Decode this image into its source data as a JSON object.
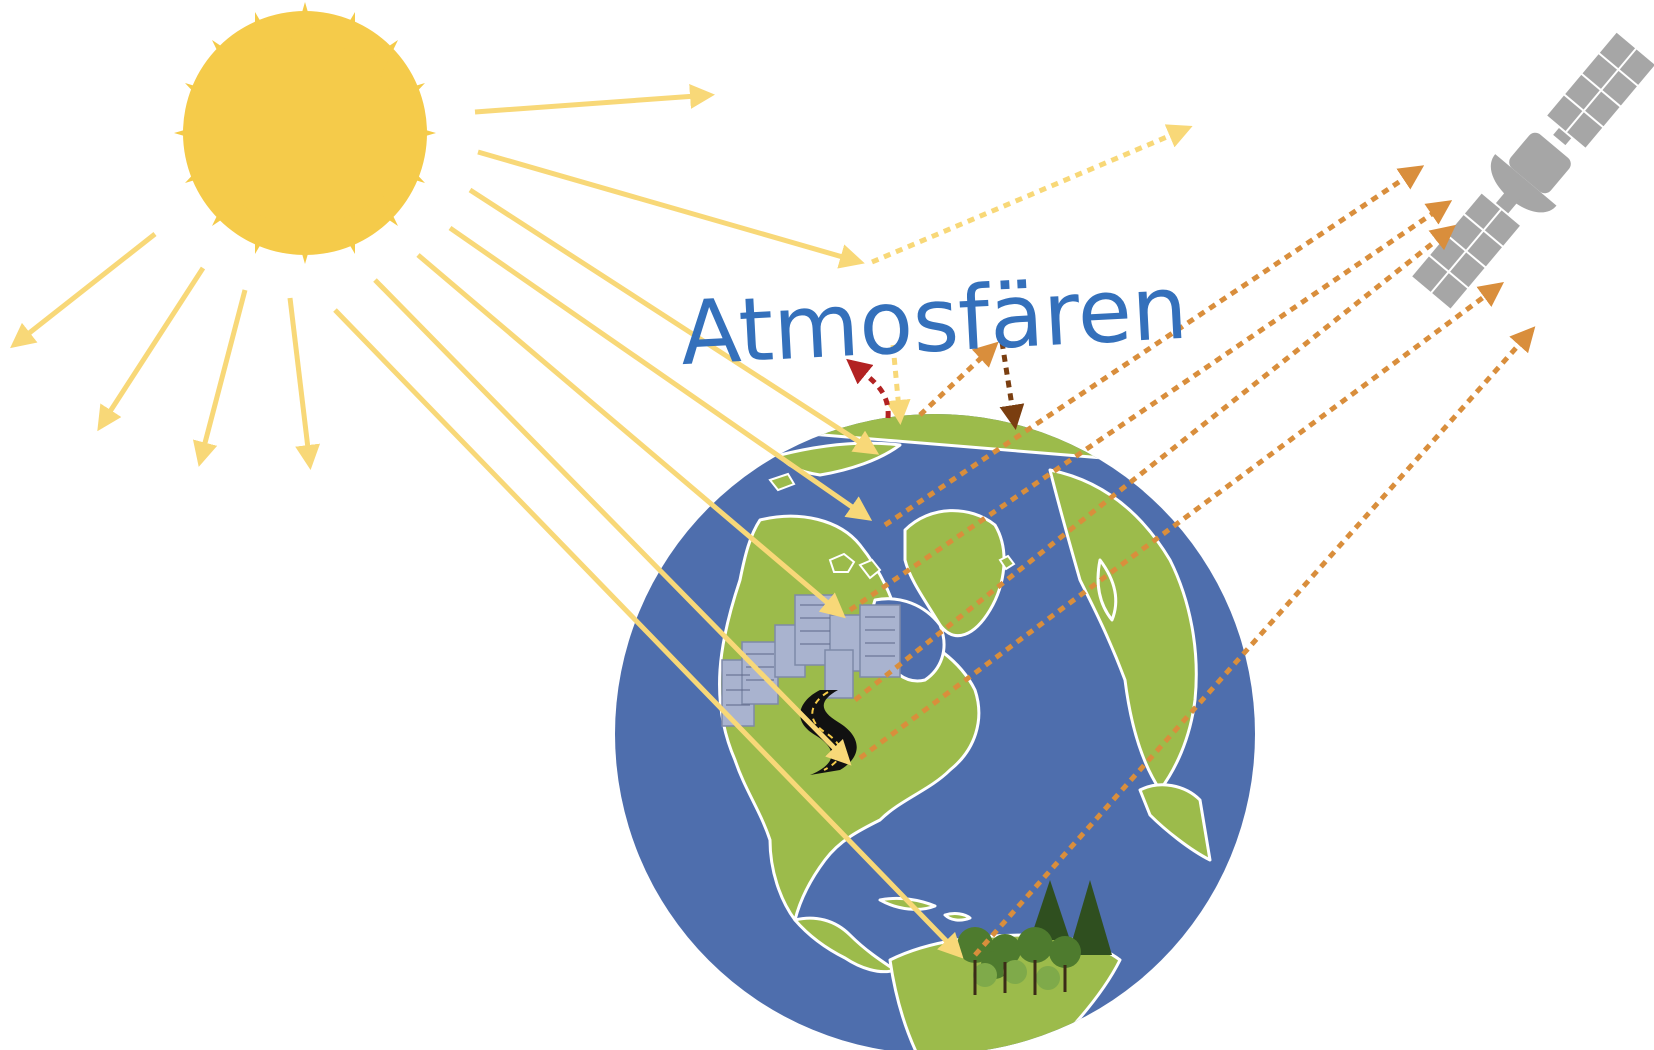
{
  "diagram": {
    "label": "Atmosfären"
  },
  "colors": {
    "sun": "#F5CB4A",
    "incoming_ray": "#F8D878",
    "reflected_space": "#F8D878",
    "reflected_surface": "#D98E3C",
    "atmosphere_up": "#B22222",
    "atmosphere_down": "#7A3E10",
    "ocean": "#4E6EAD",
    "land": "#9CBB4B",
    "label": "#3470BB",
    "satellite": "#A6A6A6",
    "building": "#A9B3CF",
    "road": "#111111",
    "forest": "#3F6A2A"
  },
  "icons": [
    "sun-icon",
    "satellite-icon",
    "globe-icon",
    "city-icon",
    "road-icon",
    "forest-icon"
  ]
}
